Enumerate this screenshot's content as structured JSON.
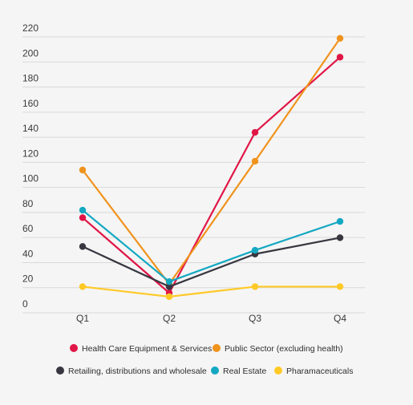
{
  "chart_data": {
    "type": "line",
    "categories": [
      "Q1",
      "Q2",
      "Q3",
      "Q4"
    ],
    "ylim": [
      0,
      220
    ],
    "yticks": [
      0,
      20,
      40,
      60,
      80,
      100,
      120,
      140,
      160,
      180,
      200,
      220
    ],
    "grid": true,
    "legend_position": "bottom",
    "series": [
      {
        "name": "Health Care Equipment & Services",
        "color": "#e01646",
        "values": [
          72,
          12,
          140,
          200
        ]
      },
      {
        "name": "Public Sector (excluding health)",
        "color": "#f0931d",
        "values": [
          110,
          19,
          117,
          215
        ]
      },
      {
        "name": "Retailing, distributions and wholesale",
        "color": "#383640",
        "values": [
          49,
          17,
          43,
          56
        ]
      },
      {
        "name": "Real Estate",
        "color": "#14a8c2",
        "values": [
          78,
          21,
          46,
          69
        ]
      },
      {
        "name": "Pharamaceuticals",
        "color": "#ffc926",
        "values": [
          17,
          9,
          17,
          17
        ]
      }
    ]
  }
}
